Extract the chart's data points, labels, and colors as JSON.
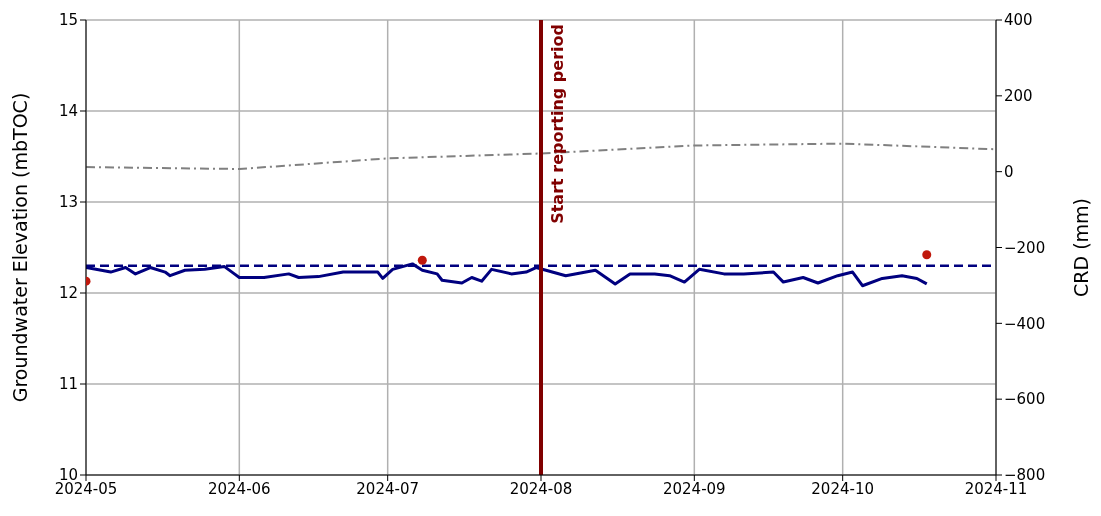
{
  "chart_data": {
    "type": "line",
    "ylabel": "Groundwater Elevation (mbTOC)",
    "y2label": "CRD (mm)",
    "xlim": [
      "2024-05-01",
      "2024-11-01"
    ],
    "xticks": [
      "2024-05",
      "2024-06",
      "2024-07",
      "2024-08",
      "2024-09",
      "2024-10",
      "2024-11"
    ],
    "ylim": [
      10,
      15
    ],
    "yticks": [
      10,
      11,
      12,
      13,
      14,
      15
    ],
    "y2lim": [
      -800,
      400
    ],
    "y2ticks": [
      {
        "value": -800,
        "label": "−800"
      },
      {
        "value": -600,
        "label": "−600"
      },
      {
        "value": -400,
        "label": "−400"
      },
      {
        "value": -200,
        "label": "−200"
      },
      0,
      200,
      400
    ],
    "grid": true,
    "series": [
      {
        "color": "#00007f",
        "marker": "none",
        "line_style": "solid",
        "x": [
          "2024-05-01",
          "2024-05-03",
          "2024-05-06",
          "2024-05-09",
          "2024-05-11",
          "2024-05-14",
          "2024-05-17",
          "2024-05-18",
          "2024-05-21",
          "2024-05-25",
          "2024-05-29",
          "2024-05-31",
          "2024-06-01",
          "2024-06-06",
          "2024-06-11",
          "2024-06-13",
          "2024-06-17",
          "2024-06-22",
          "2024-06-29",
          "2024-06-30",
          "2024-07-02",
          "2024-07-06",
          "2024-07-08",
          "2024-07-11",
          "2024-07-12",
          "2024-07-16",
          "2024-07-18",
          "2024-07-20",
          "2024-07-22",
          "2024-07-26",
          "2024-07-29",
          "2024-07-31",
          "2024-08-06",
          "2024-08-12",
          "2024-08-16",
          "2024-08-19",
          "2024-08-24",
          "2024-08-27",
          "2024-08-30",
          "2024-09-02",
          "2024-09-07",
          "2024-09-11",
          "2024-09-17",
          "2024-09-19",
          "2024-09-23",
          "2024-09-26",
          "2024-09-30",
          "2024-10-03",
          "2024-10-05",
          "2024-10-09",
          "2024-10-13",
          "2024-10-16",
          "2024-10-18"
        ],
        "values": [
          12.28,
          12.26,
          12.23,
          12.28,
          12.21,
          12.28,
          12.23,
          12.19,
          12.25,
          12.26,
          12.29,
          12.21,
          12.17,
          12.17,
          12.21,
          12.17,
          12.18,
          12.23,
          12.23,
          12.16,
          12.26,
          12.32,
          12.25,
          12.21,
          12.14,
          12.11,
          12.17,
          12.13,
          12.26,
          12.21,
          12.23,
          12.28,
          12.19,
          12.25,
          12.1,
          12.21,
          12.21,
          12.19,
          12.12,
          12.26,
          12.21,
          12.21,
          12.23,
          12.12,
          12.17,
          12.11,
          12.19,
          12.23,
          12.08,
          12.16,
          12.19,
          12.16,
          12.1
        ]
      },
      {
        "type": "line",
        "axis": "y2",
        "color": "#808080",
        "marker": "none",
        "line_style": "dashed",
        "x": [
          "2024-05-01",
          "2024-06-01",
          "2024-07-01",
          "2024-08-01",
          "2024-09-01",
          "2024-10-01",
          "2024-11-01"
        ],
        "values": [
          12,
          7,
          35,
          48,
          69,
          74,
          59
        ]
      },
      {
        "type": "scatter",
        "color": "#c0180c",
        "marker": "circle",
        "x": [
          "2024-05-01",
          "2024-07-08",
          "2024-10-18"
        ],
        "values": [
          12.13,
          12.36,
          12.42
        ]
      }
    ],
    "ref_lines": [
      {
        "axis": "y",
        "value": 12.3,
        "color": "#00007f",
        "line_style": "dashed"
      },
      {
        "axis": "x",
        "value": "2024-08-01",
        "label": "Start reporting period",
        "color": "#800000",
        "line_style": "solid"
      }
    ]
  }
}
